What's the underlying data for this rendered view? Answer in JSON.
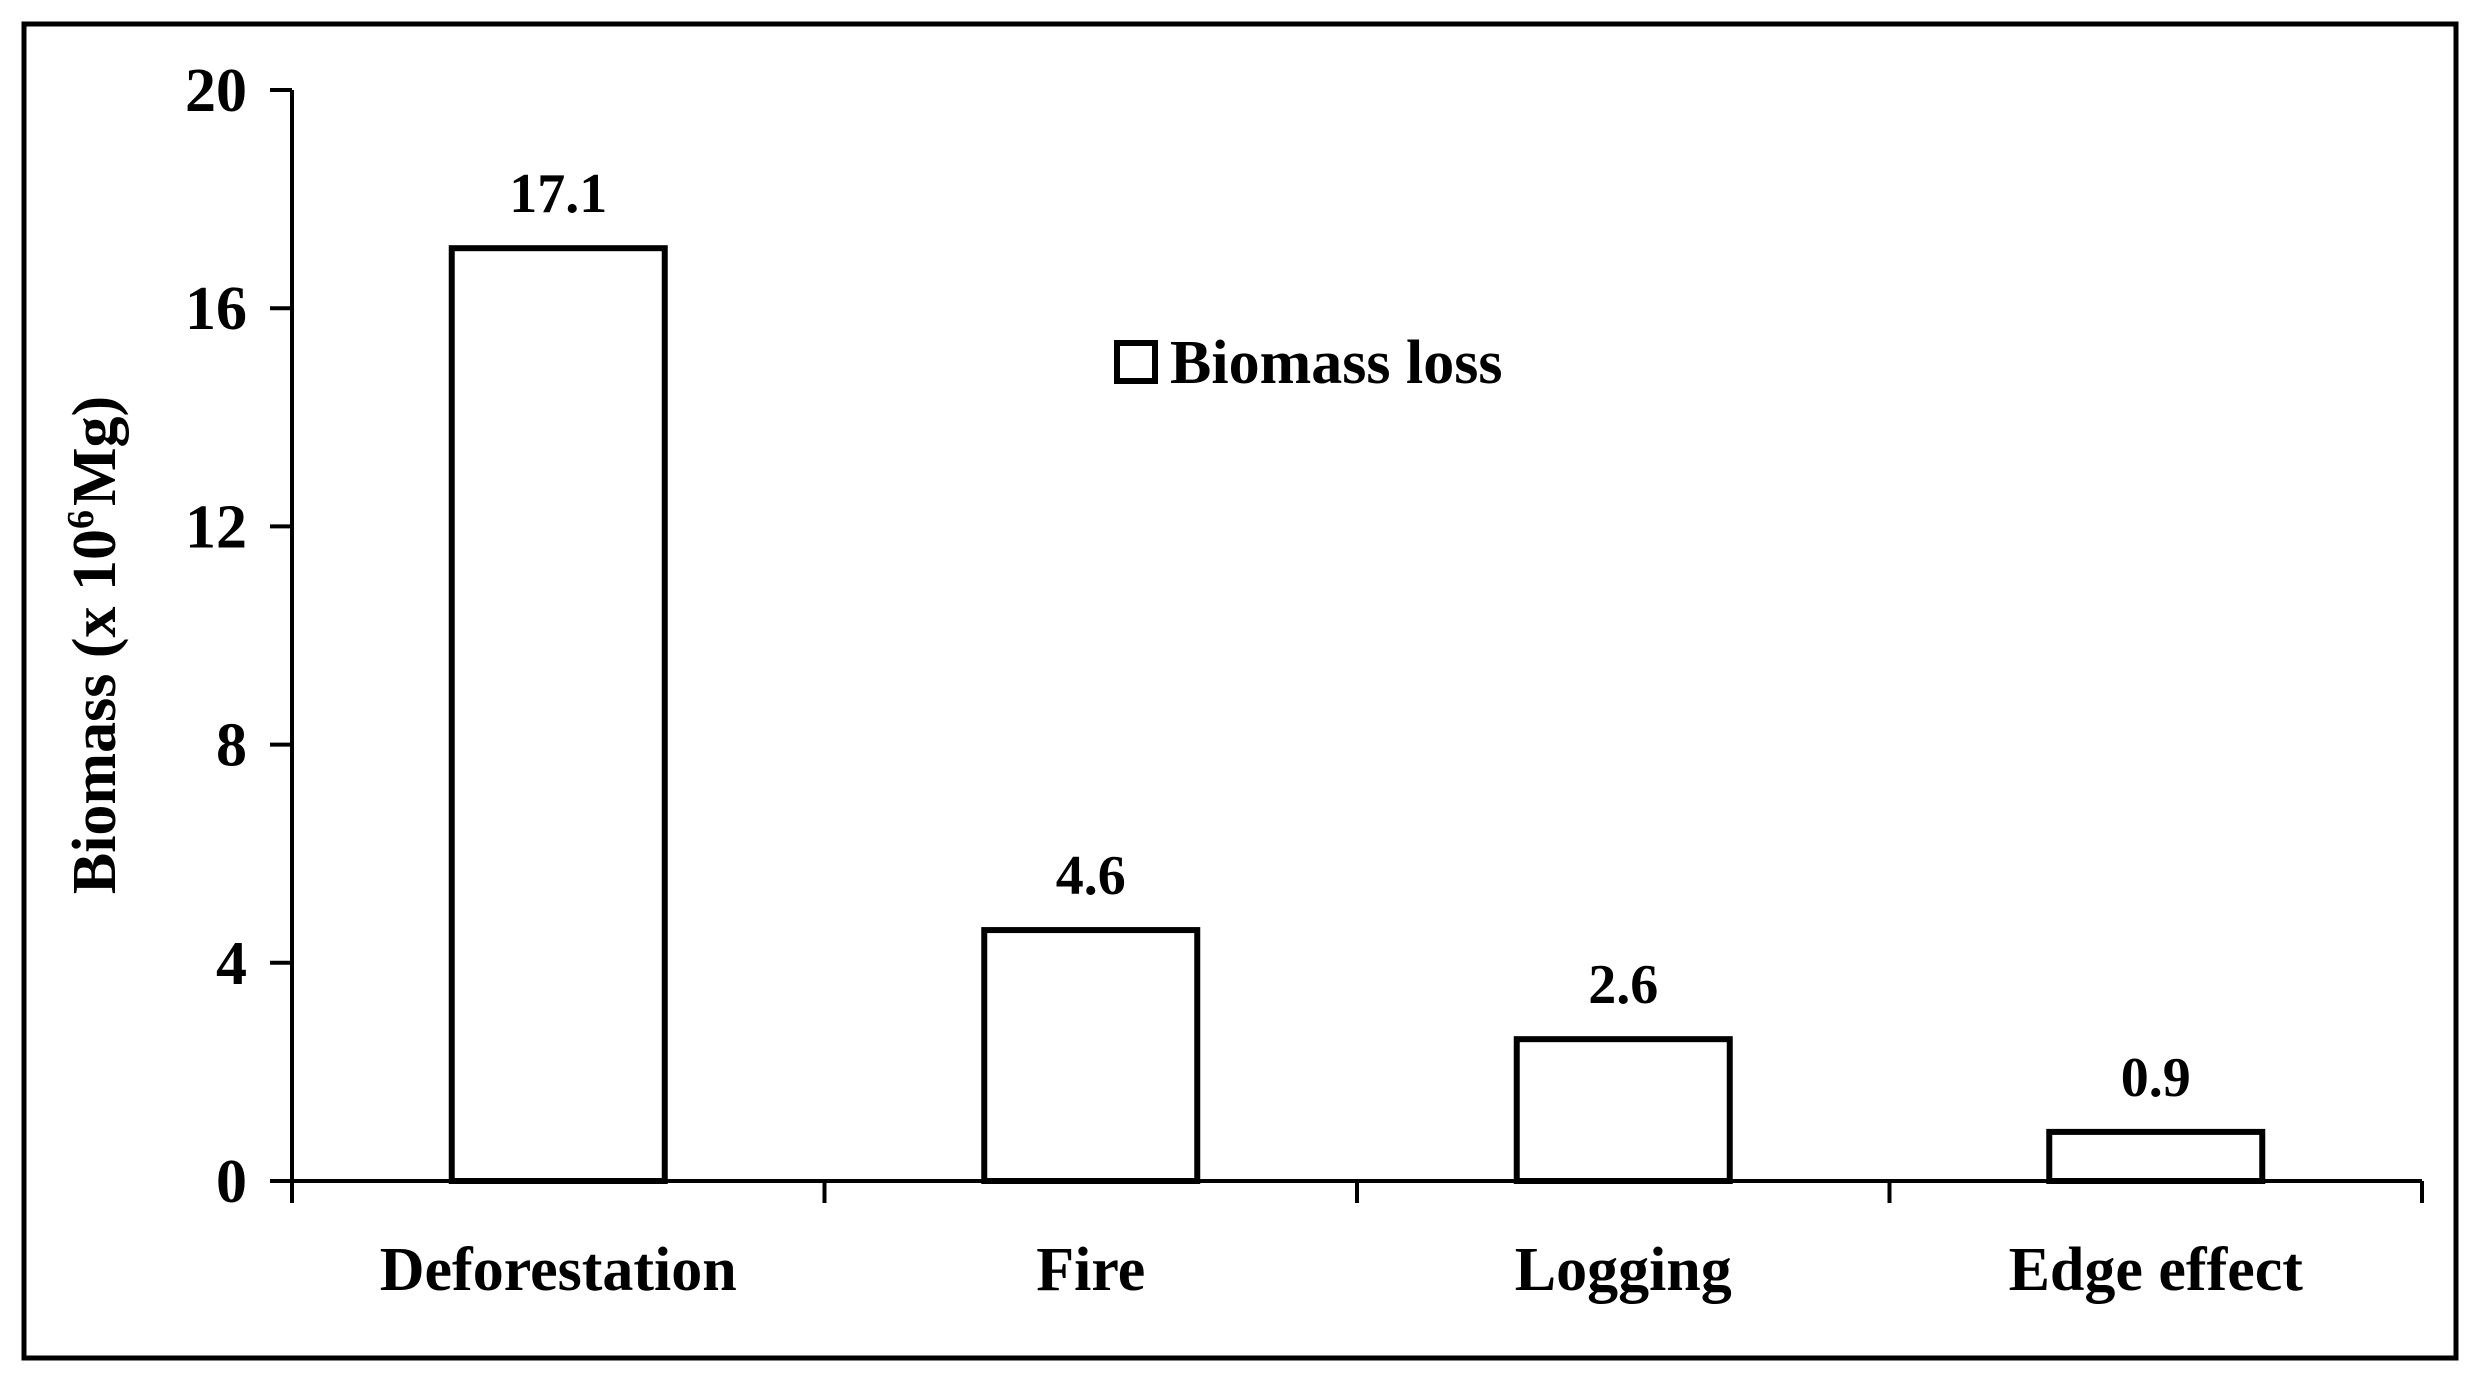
{
  "chart_data": {
    "type": "bar",
    "categories": [
      "Deforestation",
      "Fire",
      "Logging",
      "Edge effect"
    ],
    "values": [
      17.1,
      4.6,
      2.6,
      0.9
    ],
    "data_labels": [
      "17.1",
      "4.6",
      "2.6",
      "0.9"
    ],
    "series": [
      {
        "name": "Biomass loss",
        "values": [
          17.1,
          4.6,
          2.6,
          0.9
        ]
      }
    ],
    "title": "",
    "xlabel": "",
    "ylabel": "Biomass (x 10",
    "ylabel_superscript": "6",
    "ylabel_suffix": "Mg)",
    "ylim": [
      0,
      20
    ],
    "yticks": [
      0,
      4,
      8,
      12,
      16,
      20
    ],
    "ytick_labels": [
      "0",
      "4",
      "8",
      "12",
      "16",
      "20"
    ],
    "grid": false,
    "legend_position": "top-center",
    "bar_fill": "#ffffff",
    "bar_stroke": "#000000"
  }
}
